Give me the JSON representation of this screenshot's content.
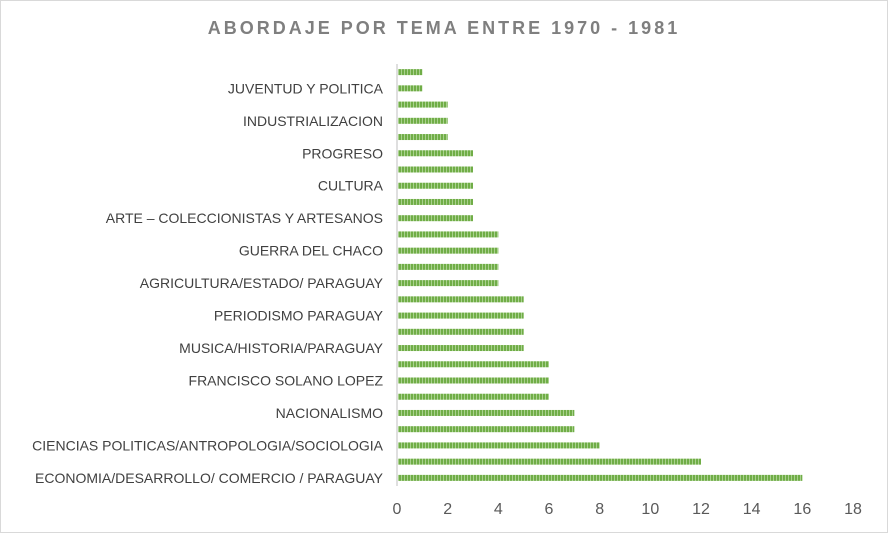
{
  "chart_data": {
    "type": "bar",
    "orientation": "horizontal",
    "title": "ABORDAJE POR TEMA ENTRE 1970 - 1981",
    "xlabel": "",
    "ylabel": "",
    "xlim": [
      0,
      18
    ],
    "xticks": [
      "0",
      "2",
      "4",
      "6",
      "8",
      "10",
      "12",
      "14",
      "16",
      "18"
    ],
    "grid": false,
    "bar_color": "#70ad47",
    "categories": [
      "ECONOMIA/DESARROLLO/ COMERCIO / PARAGUAY",
      "",
      "CIENCIAS POLITICAS/ANTROPOLOGIA/SOCIOLOGIA",
      "",
      "NACIONALISMO",
      "",
      "FRANCISCO SOLANO LOPEZ",
      "",
      "MUSICA/HISTORIA/PARAGUAY",
      "",
      "PERIODISMO PARAGUAY",
      "",
      "AGRICULTURA/ESTADO/ PARAGUAY",
      "",
      "GUERRA DEL CHACO",
      "",
      "ARTE – COLECCIONISTAS Y ARTESANOS",
      "",
      "CULTURA",
      "",
      "PROGRESO",
      "",
      "INDUSTRIALIZACION",
      "",
      "JUVENTUD Y POLITICA",
      ""
    ],
    "values": [
      16,
      12,
      8,
      7,
      7,
      6,
      6,
      6,
      5,
      5,
      5,
      5,
      4,
      4,
      4,
      4,
      3,
      3,
      3,
      3,
      3,
      2,
      2,
      2,
      1,
      1
    ]
  }
}
